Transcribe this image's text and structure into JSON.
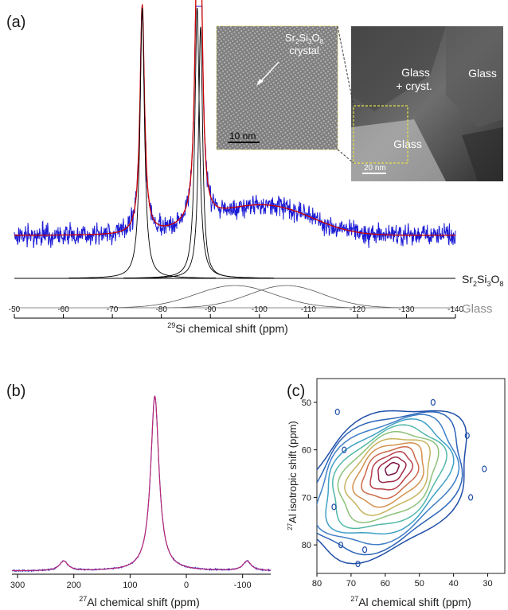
{
  "chart_data": [
    {
      "panel": "(a)",
      "type": "line",
      "xlabel_sup": "29",
      "xlabel_main": "Si chemical shift (ppm)",
      "xlim": [
        -50,
        -140
      ],
      "xticks": [
        -50,
        -60,
        -70,
        -80,
        -90,
        -100,
        -110,
        -120,
        -130,
        -140
      ],
      "peaks": [
        {
          "center": -76.1,
          "width": 0.55,
          "amplitude": 1.0
        },
        {
          "center": -87.3,
          "width": 0.55,
          "amplitude": 1.0
        },
        {
          "center": -88.0,
          "width": 0.5,
          "amplitude": 0.93
        }
      ],
      "glass_components": [
        {
          "center": -95,
          "sigma": 8
        },
        {
          "center": -105.5,
          "sigma": 7.5
        }
      ],
      "series": [
        {
          "name": "Sr2Si3O8",
          "label_main": "Sr",
          "label_sub1": "2",
          "label_mid": "Si",
          "label_sub2": "3",
          "label_end": "O",
          "label_sub3": "8",
          "color": "#000000"
        },
        {
          "name": "Glass",
          "color": "#8c8c8c"
        }
      ],
      "colors": {
        "experimental": "#1a1ad6",
        "fit": "#cc0000"
      },
      "inset": {
        "left_label_formula": [
          "Sr",
          "2",
          "Si",
          "3",
          "O",
          "8"
        ],
        "left_label_line2": "crystal",
        "left_scale": "10 nm",
        "right_labels": [
          "Glass",
          "+ cryst.",
          "Glass",
          "Glass"
        ],
        "right_scale": "20 nm"
      }
    },
    {
      "panel": "(b)",
      "type": "line",
      "xlabel_sup": "27",
      "xlabel_main": "Al chemical shift (ppm)",
      "xlim": [
        310,
        -150
      ],
      "xticks": [
        300,
        200,
        100,
        0,
        -100
      ],
      "peaks": [
        {
          "center": 56,
          "width": 9,
          "amplitude": 1.0
        },
        {
          "center": 218,
          "width": 9,
          "amplitude": 0.055
        },
        {
          "center": -108,
          "width": 9,
          "amplitude": 0.055
        }
      ],
      "colors": {
        "experimental": "#3333cc",
        "fit": "#cc2266"
      }
    },
    {
      "panel": "(c)",
      "type": "contour",
      "xlabel_sup": "27",
      "xlabel_main": "Al chemical shift (ppm)",
      "ylabel_sup": "27",
      "ylabel_main": "Al isotropic shift (ppm)",
      "xlim": [
        80,
        25
      ],
      "ylim": [
        86,
        45
      ],
      "xticks": [
        80,
        70,
        60,
        50,
        40,
        30
      ],
      "yticks": [
        50,
        60,
        70,
        80
      ],
      "levels": 12,
      "colors": [
        "#1f4ea8",
        "#2c63b8",
        "#3f7fc8",
        "#3fa0c6",
        "#52b8a8",
        "#8cc27a",
        "#c6b45e",
        "#d4914e",
        "#cc6a4a",
        "#b8404a",
        "#9c2848",
        "#7a1040"
      ]
    }
  ]
}
